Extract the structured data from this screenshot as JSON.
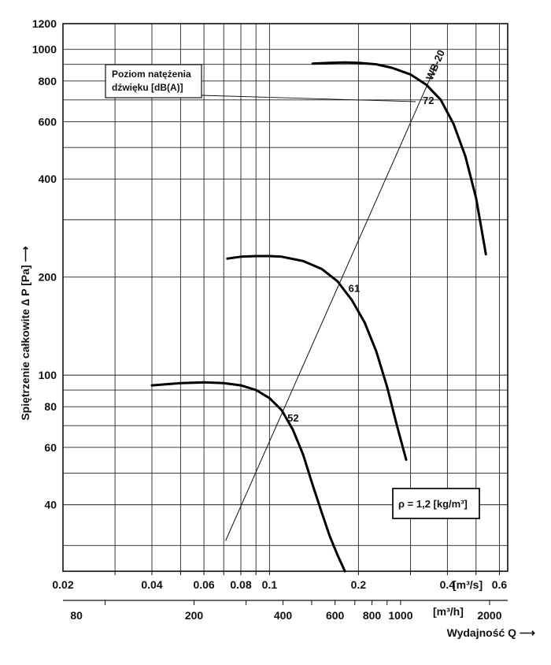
{
  "chart_data": {
    "type": "line",
    "x_scale": "log",
    "y_scale": "log",
    "x_unit": "[m³/s]",
    "x_unit_secondary": "[m³/h]",
    "xlabel": "Wydajność Q ⟶",
    "ylabel": "Spiętrzenie całkowite ∆ P [Pa] ⟶",
    "xlim": [
      0.02,
      0.64
    ],
    "ylim": [
      25,
      1200
    ],
    "x_ticks": [
      "0.02",
      "0.04",
      "0.06",
      "0.08",
      "0.1",
      "0.2",
      "0.4",
      "0.6"
    ],
    "x_ticks_secondary": [
      "80",
      "200",
      "400",
      "600",
      "800",
      "1000",
      "2000"
    ],
    "y_ticks": [
      "1200",
      "1000",
      "800",
      "600",
      "400",
      "200",
      "100",
      "80",
      "60",
      "40"
    ],
    "grid": true,
    "series": [
      {
        "name": "",
        "x": [
          0.04,
          0.05,
          0.06,
          0.07,
          0.08,
          0.09,
          0.1,
          0.11,
          0.12,
          0.13,
          0.14,
          0.15,
          0.16,
          0.17,
          0.18
        ],
        "y": [
          93,
          94.5,
          95,
          94.5,
          93,
          90,
          85,
          78,
          68,
          57,
          46,
          38,
          32,
          28,
          25
        ]
      },
      {
        "name": "",
        "x": [
          0.072,
          0.08,
          0.09,
          0.1,
          0.11,
          0.13,
          0.15,
          0.17,
          0.19,
          0.21,
          0.23,
          0.25,
          0.27,
          0.29
        ],
        "y": [
          228,
          231,
          232,
          232,
          231,
          224,
          212,
          194,
          170,
          145,
          118,
          92,
          70,
          55
        ]
      },
      {
        "name": "",
        "x": [
          0.14,
          0.16,
          0.18,
          0.2,
          0.23,
          0.26,
          0.3,
          0.34,
          0.38,
          0.42,
          0.46,
          0.5,
          0.54
        ],
        "y": [
          905,
          910,
          912,
          910,
          900,
          878,
          838,
          778,
          700,
          590,
          470,
          350,
          235
        ]
      }
    ],
    "noise_line": {
      "x": [
        0.071,
        0.365
      ],
      "y": [
        31,
        890
      ]
    },
    "noise_labels": [
      "52",
      "61",
      "72"
    ],
    "fan_label": "WB-20",
    "legend_box": {
      "lines": [
        "Poziom natężenia",
        "dźwięku [dB(A)]"
      ]
    },
    "density_box": "ρ = 1,2 [kg/m³]"
  }
}
